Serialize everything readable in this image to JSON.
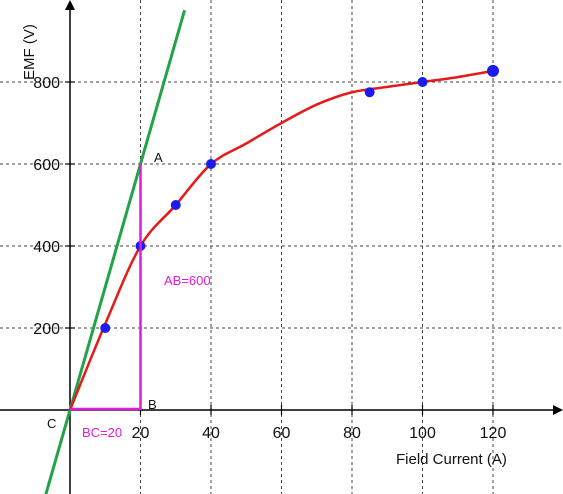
{
  "chart_data": {
    "type": "line",
    "title": "",
    "xlabel": "Field Current (A)",
    "ylabel": "EMF (V)",
    "xlim": [
      -20,
      140
    ],
    "ylim": [
      -200,
      1000
    ],
    "x_ticks": [
      20,
      40,
      60,
      80,
      100,
      120
    ],
    "y_ticks": [
      200,
      400,
      600,
      800
    ],
    "grid": true,
    "series": [
      {
        "name": "",
        "role": "curve",
        "color": "#e31b1b",
        "x": [
          0,
          10,
          20,
          30,
          40,
          50,
          60,
          70,
          80,
          90,
          100,
          110,
          120
        ],
        "y": [
          0,
          210,
          400,
          500,
          600,
          650,
          700,
          745,
          775,
          788,
          800,
          812,
          827
        ]
      },
      {
        "name": "",
        "role": "points",
        "color": "#1b1bee",
        "x": [
          10,
          20,
          30,
          40,
          85,
          100,
          120
        ],
        "y": [
          200,
          400,
          500,
          600,
          775,
          800,
          827
        ]
      },
      {
        "name": "",
        "role": "tangent",
        "color": "#22a34a",
        "x": [
          -7.5,
          32.5
        ],
        "y": [
          -225,
          975
        ]
      }
    ],
    "construction": {
      "color": "#e11bd8",
      "vertical": {
        "x": 20,
        "y": [
          0,
          600
        ]
      },
      "horizontal": {
        "y": 0,
        "x": [
          0,
          20
        ]
      }
    },
    "annotations": {
      "A": "A",
      "B": "B",
      "C": "C",
      "AB": "AB=600",
      "BC": "BC=20"
    }
  }
}
